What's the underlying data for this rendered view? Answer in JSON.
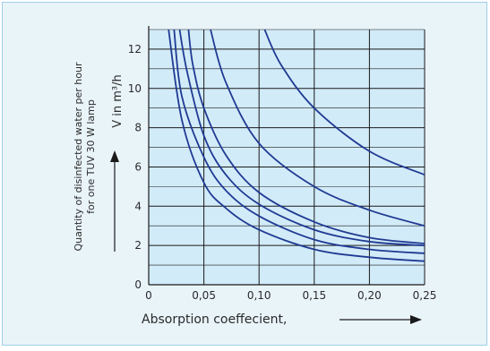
{
  "chart_data": {
    "type": "line",
    "title": "",
    "ylabel_line1": "Quantity of disinfected water per hour",
    "ylabel_line2": "for one TUV 30 W lamp",
    "y_unit_label": "V in m³/h",
    "xlabel": "Absorption coeffecient,",
    "xlim": [
      0,
      0.25
    ],
    "ylim": [
      0,
      13
    ],
    "x_ticks": [
      0,
      0.05,
      0.1,
      0.15,
      0.2,
      0.25
    ],
    "x_tick_labels": [
      "0",
      "0,05",
      "0,10",
      "0,15",
      "0,20",
      "0,25"
    ],
    "y_ticks": [
      0,
      2,
      4,
      6,
      8,
      10,
      12
    ],
    "y_tick_labels": [
      "0",
      "2",
      "4",
      "6",
      "8",
      "10",
      "12"
    ],
    "grid": true,
    "series": [
      {
        "x": [
          0.018,
          0.03,
          0.05,
          0.07,
          0.1,
          0.15,
          0.2,
          0.25
        ],
        "y": [
          13.0,
          8.4,
          5.2,
          3.9,
          2.8,
          1.8,
          1.4,
          1.2
        ]
      },
      {
        "x": [
          0.023,
          0.03,
          0.05,
          0.07,
          0.1,
          0.15,
          0.2,
          0.25
        ],
        "y": [
          13.0,
          9.6,
          6.5,
          4.8,
          3.5,
          2.3,
          1.8,
          1.6
        ]
      },
      {
        "x": [
          0.028,
          0.035,
          0.05,
          0.07,
          0.1,
          0.15,
          0.2,
          0.25
        ],
        "y": [
          13.0,
          10.8,
          7.6,
          5.6,
          4.1,
          2.8,
          2.2,
          2.0
        ]
      },
      {
        "x": [
          0.036,
          0.04,
          0.05,
          0.07,
          0.1,
          0.15,
          0.2,
          0.25
        ],
        "y": [
          13.0,
          11.2,
          9.0,
          6.6,
          4.7,
          3.2,
          2.4,
          2.1
        ]
      },
      {
        "x": [
          0.056,
          0.07,
          0.1,
          0.15,
          0.2,
          0.25
        ],
        "y": [
          13.0,
          10.3,
          7.2,
          5.0,
          3.8,
          3.0
        ]
      },
      {
        "x": [
          0.105,
          0.12,
          0.15,
          0.2,
          0.25
        ],
        "y": [
          13.0,
          11.2,
          9.0,
          6.8,
          5.6
        ]
      }
    ],
    "colors": {
      "line": "#1f3a93",
      "plot_bg": "#d2ebf8",
      "frame_bg": "#e9f4f9",
      "frame_border": "#9ccfe6",
      "grid": "#1a1a1a",
      "text": "#2a2a2a"
    }
  }
}
